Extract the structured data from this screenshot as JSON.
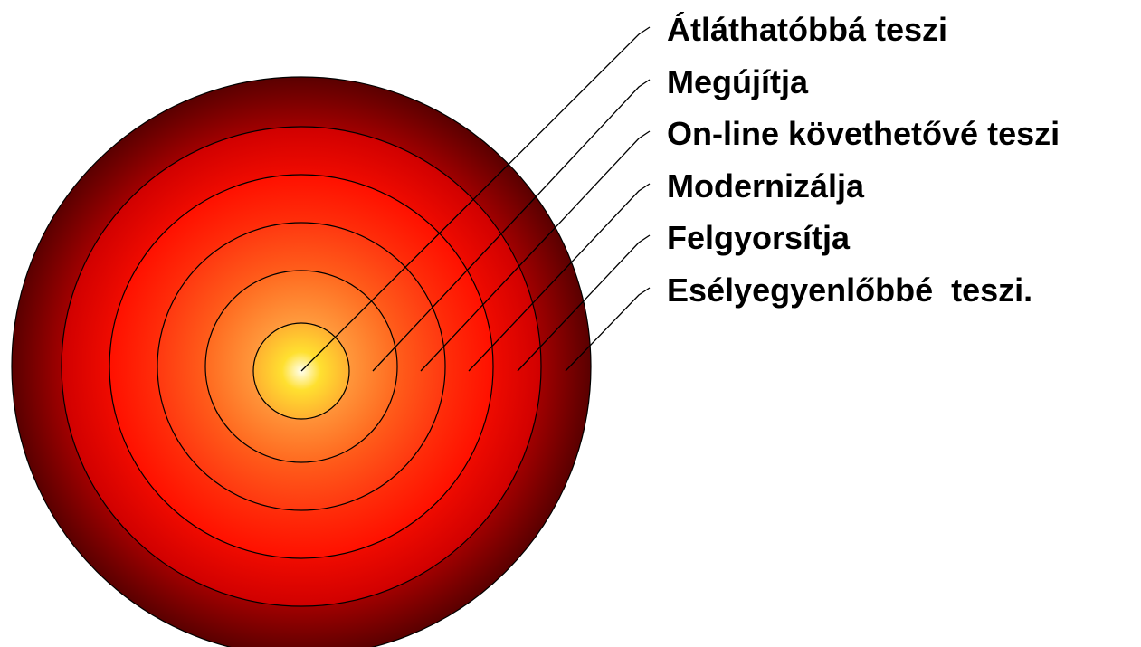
{
  "labels": [
    "Átláthatóbbá teszi",
    "Megújítja",
    "On-line követhetővé teszi",
    "Modernizálja",
    "Felgyorsítja",
    "Esélyegyenlőbbé  teszi."
  ]
}
